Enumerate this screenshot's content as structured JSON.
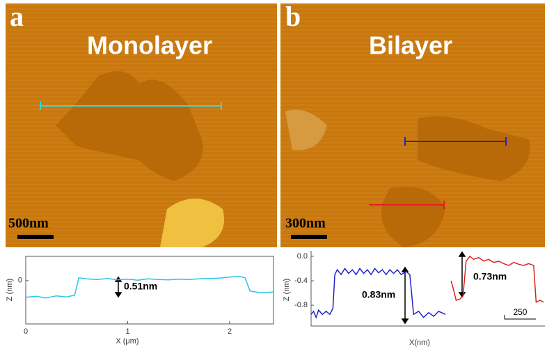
{
  "panels": [
    {
      "label": "a",
      "title": "Monolayer",
      "scale_bar": "500nm"
    },
    {
      "label": "b",
      "title": "Bilayer",
      "scale_bar": "300nm"
    }
  ],
  "chart_data": [
    {
      "type": "line",
      "x_label": "X (μm)",
      "y_label": "Z (nm)",
      "annotations": [
        "0.51nm"
      ],
      "xlim": [
        0,
        2.43
      ],
      "xticks": [
        0,
        1,
        2
      ],
      "ylim": [
        -1.25,
        0.7
      ],
      "yticks": [
        0
      ],
      "series": [
        {
          "color": "#22c8e6",
          "x": [
            0,
            0.1,
            0.2,
            0.3,
            0.4,
            0.48,
            0.52,
            0.6,
            0.7,
            0.8,
            0.9,
            1.0,
            1.1,
            1.2,
            1.3,
            1.4,
            1.5,
            1.6,
            1.7,
            1.8,
            1.9,
            2.0,
            2.1,
            2.15,
            2.2,
            2.3,
            2.43
          ],
          "values": [
            -0.48,
            -0.45,
            -0.5,
            -0.44,
            -0.47,
            -0.42,
            0.08,
            0.05,
            0.03,
            0.06,
            0.02,
            0.04,
            0.01,
            0.05,
            0.03,
            0.02,
            0.04,
            0.03,
            0.05,
            0.06,
            0.07,
            0.1,
            0.12,
            0.08,
            -0.3,
            -0.35,
            -0.33
          ]
        }
      ]
    },
    {
      "type": "line",
      "x_label": "X(nm)",
      "y_label": "Z (nm)",
      "annotations": [
        "0.83nm",
        "0.73nm"
      ],
      "xlim": [
        0,
        1870
      ],
      "ylim": [
        -1.14,
        0.09
      ],
      "yticks": [
        {
          "value": 0,
          "label": "0.0"
        },
        -0.4,
        -0.8
      ],
      "scale_bar": 250,
      "series": [
        {
          "color": "#2222cc",
          "x": [
            0,
            20,
            40,
            60,
            90,
            120,
            150,
            175,
            190,
            210,
            240,
            270,
            300,
            330,
            360,
            390,
            420,
            450,
            480,
            510,
            540,
            570,
            600,
            630,
            660,
            690,
            720,
            760,
            790,
            820,
            860,
            900,
            940,
            980,
            1020,
            1075
          ],
          "values": [
            -0.95,
            -0.9,
            -1.0,
            -0.88,
            -0.95,
            -0.9,
            -0.95,
            -0.85,
            -0.3,
            -0.22,
            -0.3,
            -0.2,
            -0.28,
            -0.22,
            -0.3,
            -0.2,
            -0.28,
            -0.22,
            -0.3,
            -0.2,
            -0.27,
            -0.22,
            -0.3,
            -0.22,
            -0.28,
            -0.22,
            -0.3,
            -0.25,
            -0.3,
            -0.95,
            -0.9,
            -1.0,
            -0.92,
            -0.98,
            -0.9,
            -0.95
          ]
        },
        {
          "color": "#e02020",
          "x": [
            1120,
            1140,
            1160,
            1190,
            1215,
            1240,
            1270,
            1300,
            1340,
            1380,
            1420,
            1460,
            1500,
            1540,
            1580,
            1620,
            1660,
            1700,
            1740,
            1780,
            1800,
            1830,
            1860
          ],
          "values": [
            -0.4,
            -0.55,
            -0.72,
            -0.7,
            -0.65,
            -0.08,
            0.0,
            -0.05,
            -0.02,
            -0.08,
            -0.05,
            -0.1,
            -0.08,
            -0.12,
            -0.15,
            -0.1,
            -0.13,
            -0.15,
            -0.12,
            -0.15,
            -0.75,
            -0.72,
            -0.75
          ]
        }
      ]
    }
  ]
}
